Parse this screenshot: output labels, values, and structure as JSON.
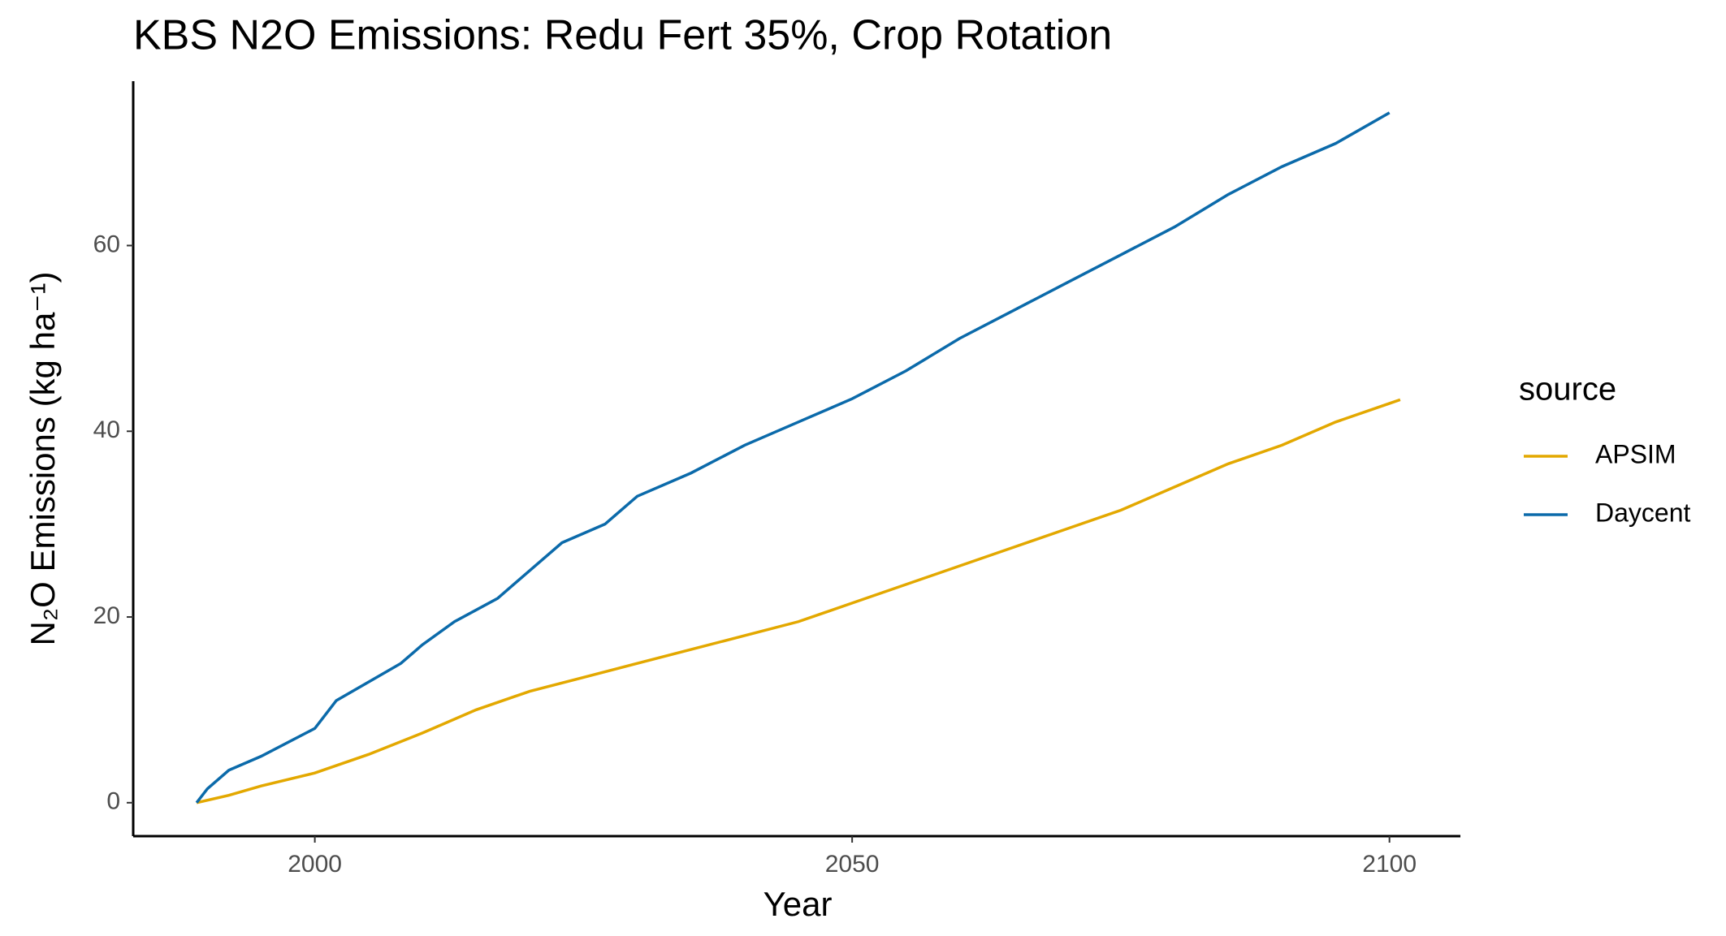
{
  "chart_data": {
    "type": "line",
    "title": "KBS N2O Emissions:  Redu Fert 35%, Crop Rotation",
    "x_label": "Year",
    "y_label": "N₂O Emissions (kg ha⁻¹)",
    "legend_title": "source",
    "legend_position": "right",
    "grid": false,
    "xlim": [
      1983.1,
      2106.6
    ],
    "xticks": [
      2000,
      2050,
      2100
    ],
    "ylim": [
      -3.6,
      77.7
    ],
    "yticks": [
      0,
      20,
      40,
      60
    ],
    "series": [
      {
        "name": "APSIM",
        "color": "#E3A800",
        "x": [
          1989,
          1992,
          1995,
          2000,
          2005,
          2010,
          2015,
          2020,
          2025,
          2030,
          2035,
          2040,
          2045,
          2050,
          2055,
          2060,
          2065,
          2070,
          2075,
          2080,
          2085,
          2090,
          2095,
          2100,
          2101
        ],
        "values": [
          0,
          0.8,
          1.8,
          3.2,
          5.2,
          7.5,
          10,
          12,
          13.5,
          15,
          16.5,
          18,
          19.5,
          21.5,
          23.5,
          25.5,
          27.5,
          29.5,
          31.5,
          34,
          36.5,
          38.5,
          41,
          43,
          43.4
        ]
      },
      {
        "name": "Daycent",
        "color": "#0B6AAA",
        "x": [
          1989,
          1990,
          1992,
          1995,
          2000,
          2002,
          2005,
          2008,
          2010,
          2013,
          2017,
          2020,
          2023,
          2027,
          2030,
          2035,
          2040,
          2045,
          2050,
          2055,
          2060,
          2065,
          2070,
          2075,
          2080,
          2085,
          2090,
          2095,
          2100
        ],
        "values": [
          0,
          1.5,
          3.5,
          5,
          8,
          11,
          13,
          15,
          17,
          19.5,
          22,
          25,
          28,
          30,
          33,
          35.5,
          38.5,
          41,
          43.5,
          46.5,
          50,
          53,
          56,
          59,
          62,
          65.5,
          68.5,
          71,
          74.3
        ]
      }
    ]
  }
}
